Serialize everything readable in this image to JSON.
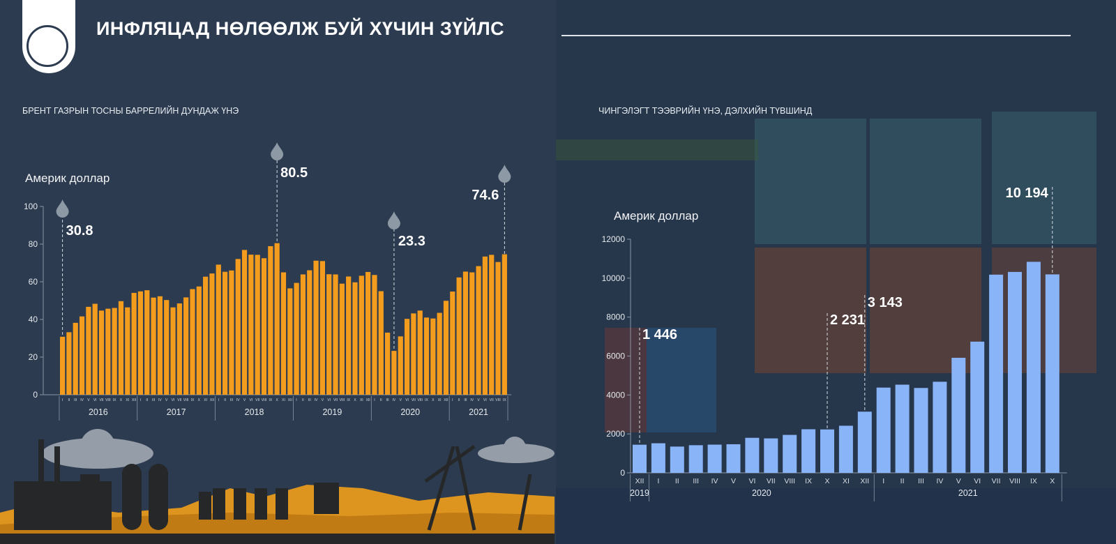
{
  "header": {
    "title": "ИНФЛЯЦАД НӨЛӨӨЛЖ БУЙ ХҮЧИН ЗҮЙЛС",
    "logo": "mongolbank-logo"
  },
  "chart_data": [
    {
      "type": "bar",
      "title": "БРЕНТ ГАЗРЫН ТОСНЫ БАРРЕЛИЙН ДУНДАЖ ҮНЭ",
      "ylabel": "Америк доллар",
      "ylim": [
        0,
        100
      ],
      "yticks": [
        "0",
        "20",
        "40",
        "60",
        "80",
        "100"
      ],
      "color": "#f39c1e",
      "years": [
        {
          "label": "2016",
          "count": 12
        },
        {
          "label": "2017",
          "count": 12
        },
        {
          "label": "2018",
          "count": 12
        },
        {
          "label": "2019",
          "count": 12
        },
        {
          "label": "2020",
          "count": 12
        },
        {
          "label": "2021",
          "count": 9
        }
      ],
      "months": [
        "I",
        "II",
        "III",
        "IV",
        "V",
        "VI",
        "VII",
        "VIII",
        "IX",
        "X",
        "XI",
        "XII"
      ],
      "values": [
        30.8,
        33.2,
        38.2,
        41.6,
        46.7,
        48.3,
        44.7,
        45.7,
        46.1,
        49.7,
        46.4,
        54.1,
        54.9,
        55.5,
        51.6,
        52.3,
        50.3,
        46.4,
        48.5,
        51.7,
        56.1,
        57.5,
        62.7,
        64.4,
        69.1,
        65.3,
        66.0,
        72.1,
        76.9,
        74.4,
        74.3,
        72.5,
        78.9,
        80.5,
        65.0,
        56.5,
        59.4,
        63.9,
        66.1,
        71.2,
        71.0,
        64.0,
        63.9,
        59.0,
        62.8,
        59.7,
        63.2,
        65.2,
        63.6,
        55.0,
        33.0,
        23.3,
        31.0,
        40.3,
        43.2,
        44.7,
        41.0,
        40.5,
        43.5,
        49.9,
        54.8,
        62.3,
        65.4,
        65.0,
        68.3,
        73.4,
        74.3,
        70.5,
        74.6
      ],
      "annotations": [
        {
          "index": 0,
          "label": "30.8"
        },
        {
          "index": 33,
          "label": "80.5"
        },
        {
          "index": 51,
          "label": "23.3"
        },
        {
          "index": 68,
          "label": "74.6"
        }
      ]
    },
    {
      "type": "bar",
      "title": "ЧИНГЭЛЭГТ ТЭЭВРИЙН ҮНЭ, ДЭЛХИЙН ТҮВШИНД",
      "ylabel": "Америк доллар",
      "ylim": [
        0,
        12000
      ],
      "yticks": [
        "0",
        "2000",
        "4000",
        "6000",
        "8000",
        "10000",
        "12000"
      ],
      "color": "#8ab4f8",
      "categories": [
        "XII",
        "I",
        "II",
        "III",
        "IV",
        "V",
        "VI",
        "VII",
        "VIII",
        "IX",
        "X",
        "XI",
        "XII",
        "I",
        "II",
        "III",
        "IV",
        "V",
        "VI",
        "VII",
        "VIII",
        "IX",
        "X"
      ],
      "years": [
        {
          "label": "2019",
          "count": 1
        },
        {
          "label": "2020",
          "count": 12
        },
        {
          "label": "2021",
          "count": 10
        }
      ],
      "values": [
        1446,
        1520,
        1350,
        1420,
        1450,
        1470,
        1800,
        1770,
        1950,
        2240,
        2231,
        2420,
        3143,
        4380,
        4530,
        4360,
        4680,
        5910,
        6740,
        10180,
        10320,
        10840,
        10194
      ],
      "annotations": [
        {
          "index": 0,
          "label": "1 446"
        },
        {
          "index": 10,
          "label": "2 231"
        },
        {
          "index": 12,
          "label": "3 143"
        },
        {
          "index": 22,
          "label": "10 194"
        }
      ]
    }
  ]
}
